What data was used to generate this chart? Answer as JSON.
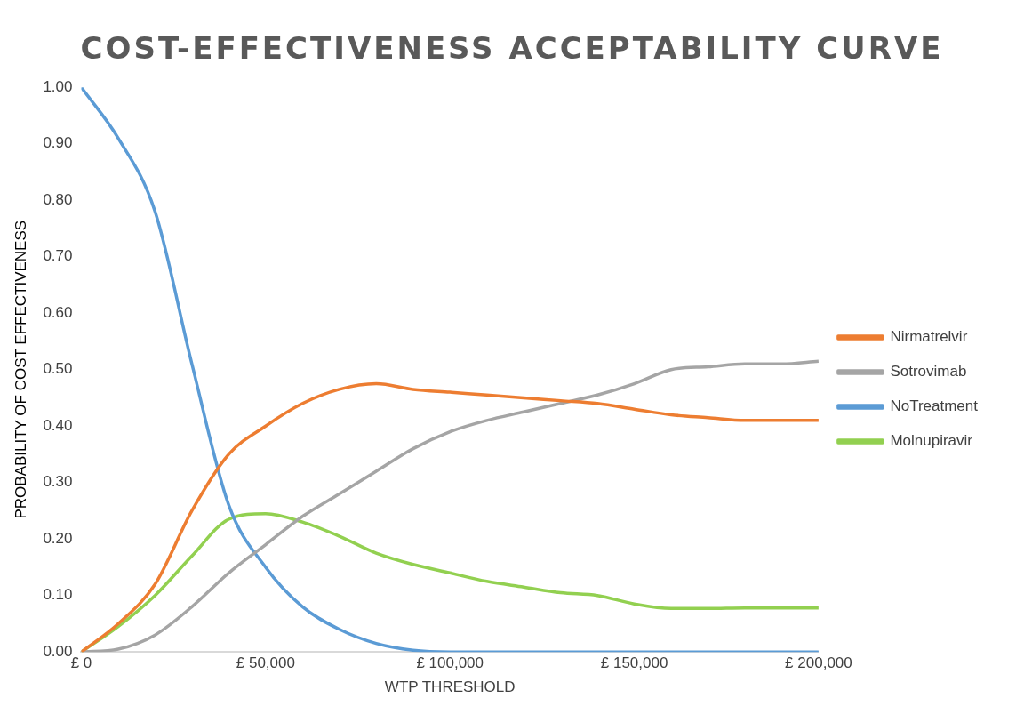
{
  "chart_data": {
    "type": "line",
    "title": "COST-EFFECTIVENESS  ACCEPTABILITY  CURVE",
    "xlabel": "WTP THRESHOLD",
    "ylabel": "PROBABILITY OF COST EFFECTIVENESS",
    "x": [
      0,
      10000,
      20000,
      30000,
      40000,
      50000,
      60000,
      70000,
      80000,
      90000,
      100000,
      110000,
      120000,
      130000,
      140000,
      150000,
      160000,
      170000,
      180000,
      190000,
      200000
    ],
    "series": [
      {
        "name": "Nirmatrelvir",
        "color": "#ed7d31",
        "values": [
          0,
          0.05,
          0.12,
          0.25,
          0.35,
          0.4,
          0.44,
          0.465,
          0.475,
          0.465,
          0.46,
          0.455,
          0.45,
          0.445,
          0.44,
          0.43,
          0.42,
          0.415,
          0.41,
          0.41,
          0.41
        ]
      },
      {
        "name": "Sotrovimab",
        "color": "#a5a5a5",
        "values": [
          0,
          0.005,
          0.03,
          0.08,
          0.14,
          0.19,
          0.24,
          0.28,
          0.32,
          0.36,
          0.39,
          0.41,
          0.425,
          0.44,
          0.455,
          0.475,
          0.5,
          0.505,
          0.51,
          0.51,
          0.515
        ]
      },
      {
        "name": "NoTreatment",
        "color": "#5b9bd5",
        "values": [
          1,
          0.91,
          0.78,
          0.51,
          0.26,
          0.15,
          0.08,
          0.04,
          0.015,
          0.003,
          0,
          0,
          0,
          0,
          0,
          0,
          0,
          0,
          0,
          0,
          0
        ]
      },
      {
        "name": "Molnupiravir",
        "color": "#92d050",
        "values": [
          0,
          0.045,
          0.1,
          0.17,
          0.235,
          0.245,
          0.23,
          0.205,
          0.175,
          0.155,
          0.14,
          0.125,
          0.115,
          0.105,
          0.1,
          0.085,
          0.077,
          0.077,
          0.078,
          0.078,
          0.078
        ]
      }
    ],
    "xlim": [
      0,
      200000
    ],
    "xticks": [
      {
        "value": 0,
        "label": "£ 0"
      },
      {
        "value": 50000,
        "label": "£ 50,000"
      },
      {
        "value": 100000,
        "label": "£ 100,000"
      },
      {
        "value": 150000,
        "label": "£ 150,000"
      },
      {
        "value": 200000,
        "label": "£ 200,000"
      }
    ],
    "ylim": [
      0,
      1
    ],
    "yticks": [
      {
        "value": 0,
        "label": "0.00"
      },
      {
        "value": 0.1,
        "label": "0.10"
      },
      {
        "value": 0.2,
        "label": "0.20"
      },
      {
        "value": 0.3,
        "label": "0.30"
      },
      {
        "value": 0.4,
        "label": "0.40"
      },
      {
        "value": 0.5,
        "label": "0.50"
      },
      {
        "value": 0.6,
        "label": "0.60"
      },
      {
        "value": 0.7,
        "label": "0.70"
      },
      {
        "value": 0.8,
        "label": "0.80"
      },
      {
        "value": 0.9,
        "label": "0.90"
      },
      {
        "value": 1,
        "label": "1.00"
      }
    ],
    "grid": false,
    "legend": "right",
    "marker": "none",
    "line_style": "solid"
  }
}
